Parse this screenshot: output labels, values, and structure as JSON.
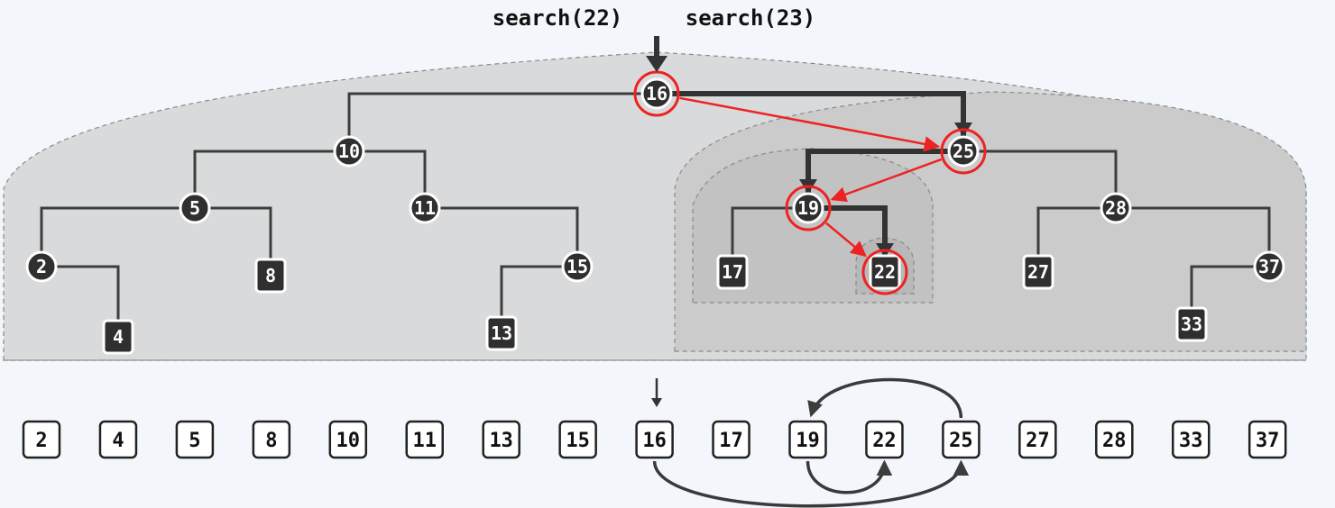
{
  "title_searches": [
    "search(22)",
    "search(23)"
  ],
  "tree": {
    "nodes": [
      {
        "key": "16",
        "kind": "internal",
        "highlight": true
      },
      {
        "key": "10",
        "kind": "internal",
        "highlight": false
      },
      {
        "key": "25",
        "kind": "internal",
        "highlight": true
      },
      {
        "key": "5",
        "kind": "internal",
        "highlight": false
      },
      {
        "key": "11",
        "kind": "internal",
        "highlight": false
      },
      {
        "key": "19",
        "kind": "internal",
        "highlight": true
      },
      {
        "key": "28",
        "kind": "internal",
        "highlight": false
      },
      {
        "key": "2",
        "kind": "internal",
        "highlight": false
      },
      {
        "key": "15",
        "kind": "internal",
        "highlight": false
      },
      {
        "key": "37",
        "kind": "internal",
        "highlight": false
      },
      {
        "key": "8",
        "kind": "leaf",
        "highlight": false
      },
      {
        "key": "4",
        "kind": "leaf",
        "highlight": false
      },
      {
        "key": "13",
        "kind": "leaf",
        "highlight": false
      },
      {
        "key": "17",
        "kind": "leaf",
        "highlight": false
      },
      {
        "key": "22",
        "kind": "leaf",
        "highlight": true
      },
      {
        "key": "27",
        "kind": "leaf",
        "highlight": false
      },
      {
        "key": "33",
        "kind": "leaf",
        "highlight": false
      }
    ],
    "edges": [
      [
        "16",
        "10"
      ],
      [
        "16",
        "25"
      ],
      [
        "10",
        "5"
      ],
      [
        "10",
        "11"
      ],
      [
        "5",
        "2"
      ],
      [
        "5",
        "8"
      ],
      [
        "2",
        "4"
      ],
      [
        "11",
        "15"
      ],
      [
        "15",
        "13"
      ],
      [
        "25",
        "19"
      ],
      [
        "25",
        "28"
      ],
      [
        "19",
        "17"
      ],
      [
        "19",
        "22"
      ],
      [
        "28",
        "27"
      ],
      [
        "28",
        "37"
      ],
      [
        "37",
        "33"
      ]
    ],
    "search_path": [
      "16",
      "25",
      "19",
      "22"
    ]
  },
  "sorted_array": [
    "2",
    "4",
    "5",
    "8",
    "10",
    "11",
    "13",
    "15",
    "16",
    "17",
    "19",
    "22",
    "25",
    "27",
    "28",
    "33",
    "37"
  ],
  "array_entry_key": "16",
  "array_arcs": [
    [
      "16",
      "25"
    ],
    [
      "25",
      "19"
    ],
    [
      "19",
      "22"
    ]
  ],
  "colors": {
    "background": "#f3f7fb",
    "region": "#d9dadb",
    "region_inner": "#cbcbcb",
    "region_innermost": "#c0c0c0",
    "region_border": "#8a8a8a",
    "node_fill": "#2f2f2f",
    "edge": "#3d3d3d",
    "highlight": "#ee2222"
  }
}
